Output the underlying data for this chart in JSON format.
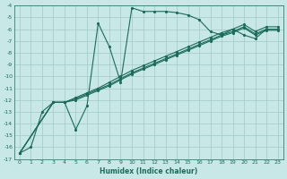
{
  "xlabel": "Humidex (Indice chaleur)",
  "background_color": "#c8e8e8",
  "grid_color": "#a0c8c8",
  "line_color": "#1a6b5a",
  "xlim": [
    -0.5,
    23.5
  ],
  "ylim_bottom": -17,
  "ylim_top": -4,
  "xticks": [
    0,
    1,
    2,
    3,
    4,
    5,
    6,
    7,
    8,
    9,
    10,
    11,
    12,
    13,
    14,
    15,
    16,
    17,
    18,
    19,
    20,
    21,
    22,
    23
  ],
  "yticks": [
    -4,
    -5,
    -6,
    -7,
    -8,
    -9,
    -10,
    -11,
    -12,
    -13,
    -14,
    -15,
    -16,
    -17
  ],
  "series": [
    {
      "x": [
        0,
        1,
        2,
        3,
        4,
        5,
        6,
        7,
        8,
        9,
        10,
        11,
        12,
        13,
        14,
        15,
        16,
        17,
        18,
        19,
        20,
        21,
        22,
        23
      ],
      "y": [
        -16.5,
        -16,
        -13,
        -12.2,
        -12.2,
        -14.5,
        -12.5,
        -5.5,
        -7.5,
        -10.5,
        -4.2,
        -4.5,
        -4.5,
        -4.5,
        -4.6,
        -4.8,
        -5.2,
        -6.2,
        -6.5,
        -6.0,
        -6.5,
        -6.8,
        -6.0,
        -6.0
      ]
    },
    {
      "x": [
        0,
        3,
        4,
        5,
        6,
        7,
        8,
        9,
        10,
        11,
        12,
        13,
        14,
        15,
        16,
        17,
        18,
        19,
        20,
        21,
        22,
        23
      ],
      "y": [
        -16.5,
        -12.2,
        -12.2,
        -11.8,
        -11.4,
        -11.0,
        -10.5,
        -10.0,
        -9.5,
        -9.1,
        -8.7,
        -8.3,
        -7.9,
        -7.5,
        -7.1,
        -6.7,
        -6.3,
        -6.0,
        -5.6,
        -6.2,
        -5.8,
        -5.8
      ]
    },
    {
      "x": [
        0,
        3,
        4,
        5,
        6,
        7,
        8,
        9,
        10,
        11,
        12,
        13,
        14,
        15,
        16,
        17,
        18,
        19,
        20,
        21,
        22,
        23
      ],
      "y": [
        -16.5,
        -12.2,
        -12.2,
        -11.9,
        -11.5,
        -11.1,
        -10.7,
        -10.2,
        -9.7,
        -9.3,
        -8.9,
        -8.5,
        -8.1,
        -7.7,
        -7.3,
        -6.9,
        -6.5,
        -6.2,
        -5.8,
        -6.4,
        -6.0,
        -6.0
      ]
    },
    {
      "x": [
        0,
        3,
        4,
        5,
        6,
        7,
        8,
        9,
        10,
        11,
        12,
        13,
        14,
        15,
        16,
        17,
        18,
        19,
        20,
        21,
        22,
        23
      ],
      "y": [
        -16.5,
        -12.2,
        -12.2,
        -12.0,
        -11.6,
        -11.2,
        -10.8,
        -10.3,
        -9.8,
        -9.4,
        -9.0,
        -8.6,
        -8.2,
        -7.8,
        -7.4,
        -7.0,
        -6.6,
        -6.3,
        -5.9,
        -6.5,
        -6.1,
        -6.1
      ]
    }
  ]
}
